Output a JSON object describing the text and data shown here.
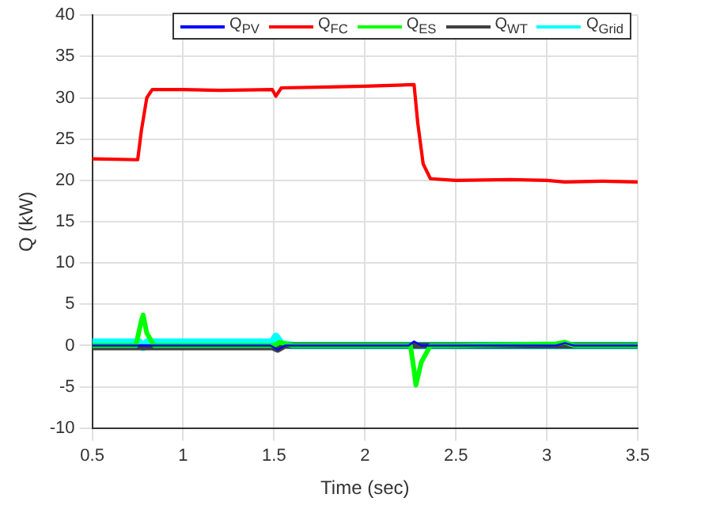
{
  "chart_data": {
    "type": "line",
    "xlabel": "Time (sec)",
    "ylabel": "Q (kW)",
    "xlim": [
      0.5,
      3.5
    ],
    "xticks": [
      0.5,
      1,
      1.5,
      2,
      2.5,
      3,
      3.5
    ],
    "ylim": [
      -10,
      40
    ],
    "yticks": [
      -10,
      -5,
      0,
      5,
      10,
      15,
      20,
      25,
      30,
      35,
      40
    ],
    "grid": true,
    "legend": "top right",
    "marker": "none",
    "line_style": "solid",
    "series": [
      {
        "name": "Q$_{PV}$",
        "color": "#0000ff",
        "x": [
          0.5,
          1.48,
          1.52,
          1.56,
          2.24,
          2.27,
          2.31,
          3.05,
          3.1,
          3.15,
          3.5
        ],
        "values": [
          0,
          0,
          -0.5,
          0,
          0,
          0.5,
          0,
          0,
          0.3,
          0,
          0
        ]
      },
      {
        "name": "Q$_{FC}$",
        "color": "#ff0000",
        "x": [
          0.5,
          0.75,
          0.77,
          0.8,
          0.83,
          1.0,
          1.2,
          1.49,
          1.51,
          1.54,
          1.8,
          2.0,
          2.27,
          2.29,
          2.32,
          2.36,
          2.5,
          2.8,
          3.0,
          3.1,
          3.3,
          3.5
        ],
        "values": [
          22.6,
          22.5,
          26,
          30,
          31,
          31,
          30.9,
          31,
          30.2,
          31.2,
          31.3,
          31.4,
          31.6,
          27,
          22,
          20.2,
          20,
          20.1,
          20,
          19.8,
          19.9,
          19.8
        ]
      },
      {
        "name": "Q$_{ES}$",
        "color": "#00ff00",
        "x": [
          0.5,
          0.74,
          0.77,
          0.78,
          0.8,
          0.84,
          1.0,
          1.5,
          1.53,
          1.6,
          2.25,
          2.27,
          2.28,
          2.31,
          2.36,
          2.5,
          3.05,
          3.1,
          3.15,
          3.5
        ],
        "values": [
          0,
          0,
          3,
          3.7,
          1.5,
          0,
          0,
          0,
          0.4,
          0,
          0,
          -3,
          -4.8,
          -2,
          0,
          0,
          0.2,
          0.4,
          0,
          0
        ]
      },
      {
        "name": "Q$_{WT}$",
        "color": "#404040",
        "x": [
          0.5,
          1.0,
          1.49,
          1.52,
          1.56,
          3.5
        ],
        "values": [
          -0.2,
          -0.2,
          -0.2,
          -0.5,
          0,
          0
        ]
      },
      {
        "name": "Q$_{Grid}$",
        "color": "#00ffff",
        "x": [
          0.5,
          0.76,
          0.78,
          0.8,
          1.0,
          1.49,
          1.51,
          1.54,
          1.6,
          3.5
        ],
        "values": [
          0.4,
          0.4,
          -0.2,
          0.4,
          0.4,
          0.4,
          1.1,
          0.2,
          0,
          0
        ]
      }
    ]
  }
}
